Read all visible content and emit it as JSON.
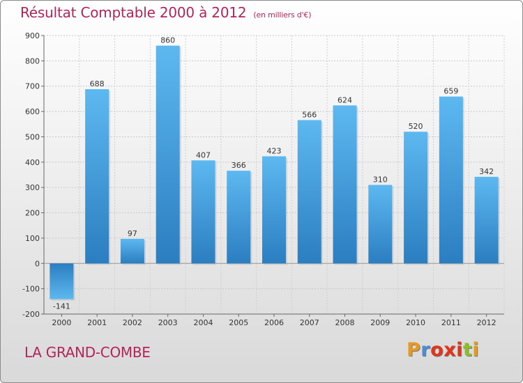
{
  "title": {
    "main": "Résultat Comptable 2000 à 2012",
    "unit": "(en milliers d'€)"
  },
  "commune": "LA GRAND-COMBE",
  "logo": {
    "letters": [
      "P",
      "r",
      "o",
      "x",
      "i",
      "t",
      "i"
    ],
    "colors": [
      "#e89a1e",
      "#4a8fd6",
      "#e0351a",
      "#e0351a",
      "#e0351a",
      "#8bbf2a",
      "#e89a1e"
    ]
  },
  "colors": {
    "accent": "#b2245c",
    "bar_light": "#5bb5ee",
    "bar_dark": "#2a7fc2"
  },
  "chart_data": {
    "type": "bar",
    "title": "Résultat Comptable 2000 à 2012",
    "ylabel": "",
    "xlabel": "",
    "ylim": [
      -200,
      900
    ],
    "yticks": [
      -200,
      -100,
      0,
      100,
      200,
      300,
      400,
      500,
      600,
      700,
      800,
      900
    ],
    "categories": [
      "2000",
      "2001",
      "2002",
      "2003",
      "2004",
      "2005",
      "2006",
      "2007",
      "2008",
      "2009",
      "2010",
      "2011",
      "2012"
    ],
    "values": [
      -141,
      688,
      97,
      860,
      407,
      366,
      423,
      566,
      624,
      310,
      520,
      659,
      342
    ],
    "grid": true
  }
}
